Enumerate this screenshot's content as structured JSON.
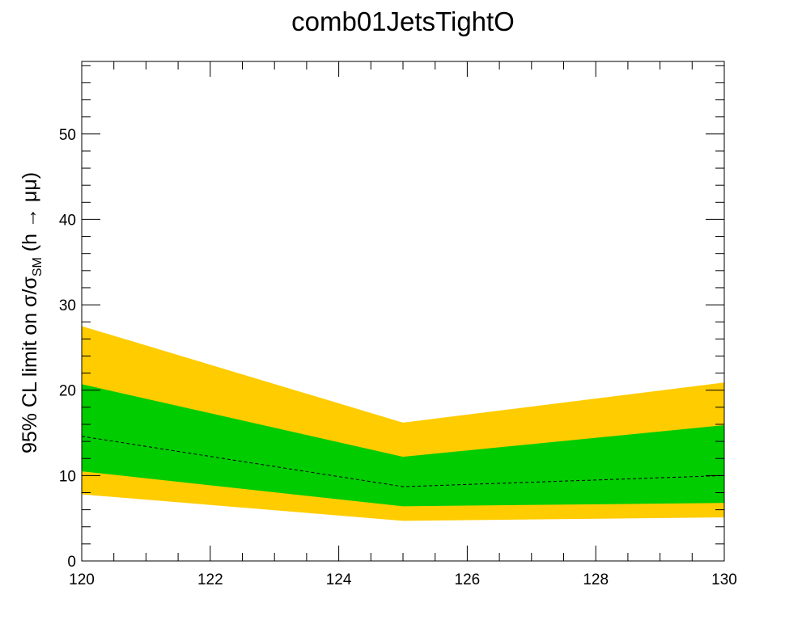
{
  "chart_data": {
    "type": "area",
    "title": "comb01JetsTightO",
    "xlabel": "",
    "ylabel": {
      "prefix": "95% CL limit on σ/σ",
      "subscript": "SM",
      "suffix": " (h → μμ)"
    },
    "xlim": [
      120,
      130
    ],
    "ylim": [
      0,
      58.5
    ],
    "x_ticks": [
      120,
      122,
      124,
      126,
      128,
      130
    ],
    "y_ticks": [
      0,
      10,
      20,
      30,
      40,
      50
    ],
    "x": [
      120,
      125,
      130
    ],
    "series": [
      {
        "role": "band_2sigma",
        "color": "#ffcc00",
        "lower": [
          7.8,
          4.7,
          5.1
        ],
        "upper": [
          27.5,
          16.2,
          20.9
        ]
      },
      {
        "role": "band_1sigma",
        "color": "#00cc00",
        "lower": [
          10.5,
          6.4,
          6.8
        ],
        "upper": [
          20.7,
          12.2,
          15.9
        ]
      },
      {
        "role": "expected",
        "color": "#000000",
        "style": "dashed",
        "values": [
          14.6,
          8.7,
          10.0
        ]
      }
    ],
    "grid": false,
    "legend": "none"
  }
}
